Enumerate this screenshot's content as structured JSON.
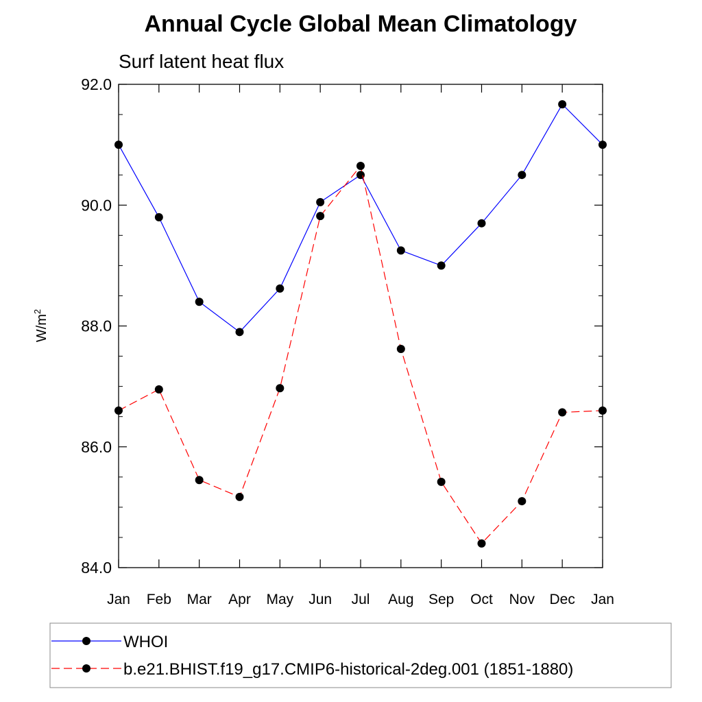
{
  "chart_data": {
    "type": "line",
    "title": "Annual Cycle Global Mean Climatology",
    "subtitle": "Surf latent heat flux",
    "ylabel_base": "W/m",
    "ylabel_sup": "2",
    "xlabel": "",
    "categories": [
      "Jan",
      "Feb",
      "Mar",
      "Apr",
      "May",
      "Jun",
      "Jul",
      "Aug",
      "Sep",
      "Oct",
      "Nov",
      "Dec",
      "Jan"
    ],
    "ylim": [
      84.0,
      92.0
    ],
    "yticks": [
      "84.0",
      "86.0",
      "88.0",
      "90.0",
      "92.0"
    ],
    "series": [
      {
        "name": "WHOI",
        "color": "#0000ff",
        "dash": "solid",
        "values": [
          91.0,
          89.8,
          88.4,
          87.9,
          88.62,
          90.05,
          90.5,
          89.25,
          89.0,
          89.7,
          90.5,
          91.67,
          91.0
        ]
      },
      {
        "name": "b.e21.BHIST.f19_g17.CMIP6-historical-2deg.001 (1851-1880)",
        "color": "#ff0000",
        "dash": "dashed",
        "values": [
          86.6,
          86.95,
          85.45,
          85.17,
          86.97,
          89.82,
          90.65,
          87.62,
          85.42,
          84.4,
          85.1,
          86.57,
          86.6
        ]
      }
    ],
    "marker": "filled-circle",
    "marker_color": "#000000",
    "legend_position": "bottom"
  }
}
